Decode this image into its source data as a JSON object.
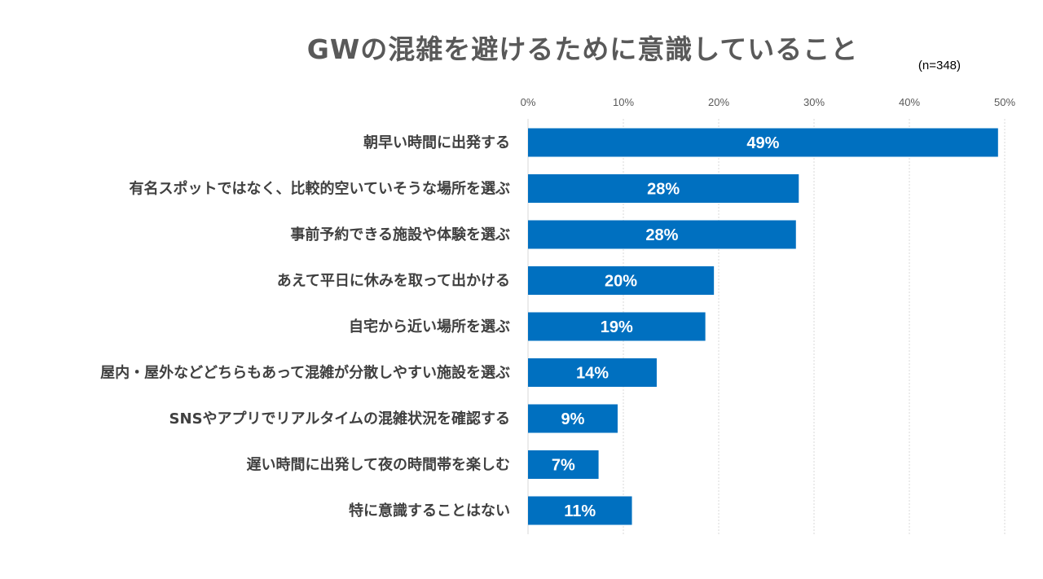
{
  "chart_data": {
    "type": "bar",
    "orientation": "horizontal",
    "title": "GWの混雑を避けるために意識していること",
    "note": "(n=348)",
    "categories": [
      "朝早い時間に出発する",
      "有名スポットではなく、比較的空いていそうな場所を選ぶ",
      "事前予約できる施設や体験を選ぶ",
      "あえて平日に休みを取って出かける",
      "自宅から近い場所を選ぶ",
      "屋内・屋外などどちらもあって混雑が分散しやすい施設を選ぶ",
      "SNSやアプリでリアルタイムの混雑状況を確認する",
      "遅い時間に出発して夜の時間帯を楽しむ",
      "特に意識することはない"
    ],
    "values": [
      49.3,
      28.4,
      28.1,
      19.5,
      18.6,
      13.5,
      9.4,
      7.4,
      10.9
    ],
    "data_labels": [
      "49%",
      "28%",
      "28%",
      "20%",
      "19%",
      "14%",
      "9%",
      "7%",
      "11%"
    ],
    "xlim": [
      0,
      50
    ],
    "xticks": [
      0,
      10,
      20,
      30,
      40,
      50
    ],
    "xtick_labels": [
      "0%",
      "10%",
      "20%",
      "30%",
      "40%",
      "50%"
    ],
    "xaxis_position": "top",
    "grid": true,
    "bar_color": "#0070C0",
    "label_color": "#FFFFFF"
  }
}
